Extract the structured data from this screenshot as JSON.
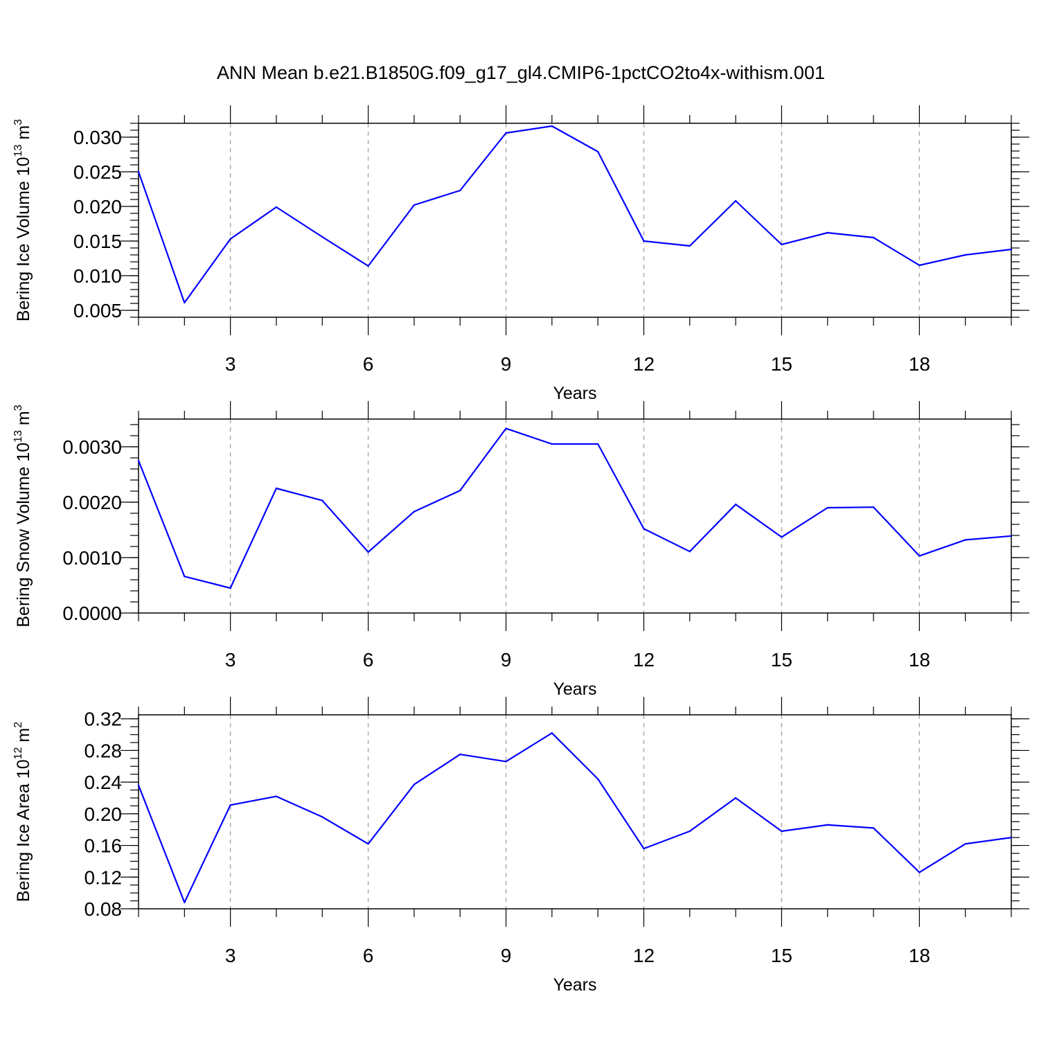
{
  "title": "ANN Mean b.e21.B1850G.f09_g17_gl4.CMIP6-1pctCO2to4x-withism.001",
  "colors": {
    "line": "#0000ff",
    "grid": "#aaaaaa",
    "axis": "#000000"
  },
  "chart_data": [
    {
      "type": "line",
      "name": "ice-volume",
      "ylabel": {
        "text": "Bering Ice Volume 10",
        "exp": "13",
        "unit": " m",
        "unit_exp": "3"
      },
      "xlabel": "Years",
      "xlim": [
        1,
        20
      ],
      "ylim": [
        0.004,
        0.032
      ],
      "y_major_ticks": [
        0.005,
        0.01,
        0.015,
        0.02,
        0.025,
        0.03
      ],
      "y_tick_labels": [
        "0.005",
        "0.010",
        "0.015",
        "0.020",
        "0.025",
        "0.030"
      ],
      "y_minor_step": 0.001,
      "x_major_ticks": [
        3,
        6,
        9,
        12,
        15,
        18
      ],
      "x_tick_labels": [
        "3",
        "6",
        "9",
        "12",
        "15",
        "18"
      ],
      "x": [
        1,
        2,
        3,
        4,
        5,
        6,
        7,
        8,
        9,
        10,
        11,
        12,
        13,
        14,
        15,
        16,
        17,
        18,
        19,
        20
      ],
      "values": [
        0.025,
        0.0061,
        0.0153,
        0.0199,
        0.0156,
        0.0114,
        0.0202,
        0.0223,
        0.0306,
        0.0316,
        0.0279,
        0.015,
        0.0143,
        0.0208,
        0.0145,
        0.0162,
        0.0155,
        0.0115,
        0.013,
        0.0138
      ]
    },
    {
      "type": "line",
      "name": "snow-volume",
      "ylabel": {
        "text": "Bering Snow Volume 10",
        "exp": "13",
        "unit": " m",
        "unit_exp": "3"
      },
      "xlabel": "Years",
      "xlim": [
        1,
        20
      ],
      "ylim": [
        0.0,
        0.0035
      ],
      "y_major_ticks": [
        0.0,
        0.001,
        0.002,
        0.003
      ],
      "y_tick_labels": [
        "0.0000",
        "0.0010",
        "0.0020",
        "0.0030"
      ],
      "y_minor_step": 0.0002,
      "x_major_ticks": [
        3,
        6,
        9,
        12,
        15,
        18
      ],
      "x_tick_labels": [
        "3",
        "6",
        "9",
        "12",
        "15",
        "18"
      ],
      "x": [
        1,
        2,
        3,
        4,
        5,
        6,
        7,
        8,
        9,
        10,
        11,
        12,
        13,
        14,
        15,
        16,
        17,
        18,
        19,
        20
      ],
      "values": [
        0.00275,
        0.00066,
        0.00045,
        0.00225,
        0.00203,
        0.0011,
        0.00183,
        0.00221,
        0.00333,
        0.00305,
        0.00305,
        0.00152,
        0.00111,
        0.00196,
        0.00137,
        0.0019,
        0.00191,
        0.00103,
        0.00132,
        0.00139
      ]
    },
    {
      "type": "line",
      "name": "ice-area",
      "ylabel": {
        "text": "Bering Ice Area 10",
        "exp": "12",
        "unit": " m",
        "unit_exp": "2"
      },
      "xlabel": "Years",
      "xlim": [
        1,
        20
      ],
      "ylim": [
        0.08,
        0.325
      ],
      "y_major_ticks": [
        0.08,
        0.12,
        0.16,
        0.2,
        0.24,
        0.28,
        0.32
      ],
      "y_tick_labels": [
        "0.08",
        "0.12",
        "0.16",
        "0.20",
        "0.24",
        "0.28",
        "0.32"
      ],
      "y_minor_step": 0.01,
      "x_major_ticks": [
        3,
        6,
        9,
        12,
        15,
        18
      ],
      "x_tick_labels": [
        "3",
        "6",
        "9",
        "12",
        "15",
        "18"
      ],
      "x": [
        1,
        2,
        3,
        4,
        5,
        6,
        7,
        8,
        9,
        10,
        11,
        12,
        13,
        14,
        15,
        16,
        17,
        18,
        19,
        20
      ],
      "values": [
        0.236,
        0.088,
        0.211,
        0.222,
        0.196,
        0.162,
        0.237,
        0.275,
        0.266,
        0.302,
        0.244,
        0.156,
        0.178,
        0.22,
        0.178,
        0.186,
        0.182,
        0.126,
        0.162,
        0.17
      ]
    }
  ]
}
